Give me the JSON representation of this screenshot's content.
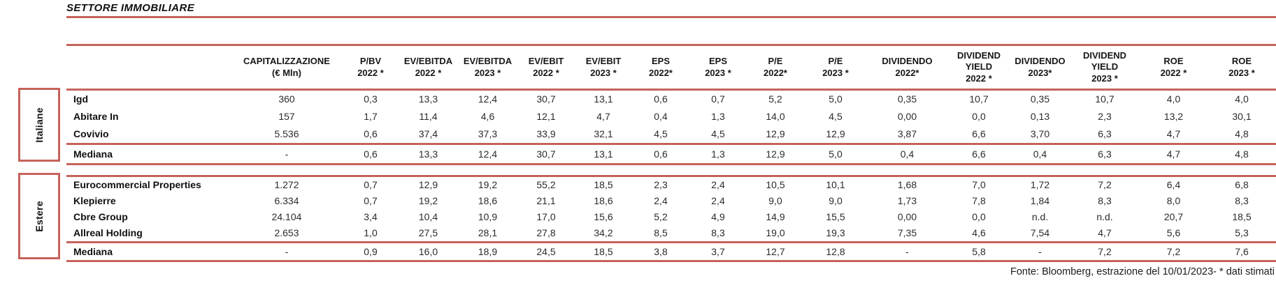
{
  "title": "SETTORE IMMOBILIARE",
  "footer": "Fonte: Bloomberg, estrazione del 10/01/2023- * dati stimati",
  "colors": {
    "accent": "#c5635a",
    "text": "#1b1b1b"
  },
  "table": {
    "columns": [
      "CAPITALIZZAZIONE\n(€ Mln)",
      "P/BV\n2022 *",
      "EV/EBITDA\n2022 *",
      "EV/EBITDA\n2023 *",
      "EV/EBIT\n2022 *",
      "EV/EBIT\n2023 *",
      "EPS\n2022*",
      "EPS\n2023 *",
      "P/E\n2022*",
      "P/E\n2023 *",
      "DIVIDENDO\n2022*",
      "DIVIDEND\nYIELD\n2022 *",
      "DIVIDENDO\n2023*",
      "DIVIDEND\nYIELD\n2023 *",
      "ROE\n2022 *",
      "ROE\n2023 *"
    ],
    "sections": [
      {
        "group_label": "Italiane",
        "rows": [
          {
            "name": "Igd",
            "values": [
              "360",
              "0,3",
              "13,3",
              "12,4",
              "30,7",
              "13,1",
              "0,6",
              "0,7",
              "5,2",
              "5,0",
              "0,35",
              "10,7",
              "0,35",
              "10,7",
              "4,0",
              "4,0"
            ]
          },
          {
            "name": "Abitare In",
            "values": [
              "157",
              "1,7",
              "11,4",
              "4,6",
              "12,1",
              "4,7",
              "0,4",
              "1,3",
              "14,0",
              "4,5",
              "0,00",
              "0,0",
              "0,13",
              "2,3",
              "13,2",
              "30,1"
            ]
          },
          {
            "name": "Covivio",
            "values": [
              "5.536",
              "0,6",
              "37,4",
              "37,3",
              "33,9",
              "32,1",
              "4,5",
              "4,5",
              "12,9",
              "12,9",
              "3,87",
              "6,6",
              "3,70",
              "6,3",
              "4,7",
              "4,8"
            ]
          }
        ],
        "median": {
          "name": "Mediana",
          "values": [
            "-",
            "0,6",
            "13,3",
            "12,4",
            "30,7",
            "13,1",
            "0,6",
            "1,3",
            "12,9",
            "5,0",
            "0,4",
            "6,6",
            "0,4",
            "6,3",
            "4,7",
            "4,8"
          ]
        }
      },
      {
        "group_label": "Estere",
        "rows": [
          {
            "name": "Eurocommercial Properties",
            "values": [
              "1.272",
              "0,7",
              "12,9",
              "19,2",
              "55,2",
              "18,5",
              "2,3",
              "2,4",
              "10,5",
              "10,1",
              "1,68",
              "7,0",
              "1,72",
              "7,2",
              "6,4",
              "6,8"
            ]
          },
          {
            "name": "Klepierre",
            "values": [
              "6.334",
              "0,7",
              "19,2",
              "18,6",
              "21,1",
              "18,6",
              "2,4",
              "2,4",
              "9,0",
              "9,0",
              "1,73",
              "7,8",
              "1,84",
              "8,3",
              "8,0",
              "8,3"
            ]
          },
          {
            "name": "Cbre Group",
            "values": [
              "24.104",
              "3,4",
              "10,4",
              "10,9",
              "17,0",
              "15,6",
              "5,2",
              "4,9",
              "14,9",
              "15,5",
              "0,00",
              "0,0",
              "n.d.",
              "n.d.",
              "20,7",
              "18,5"
            ]
          },
          {
            "name": "Allreal Holding",
            "values": [
              "2.653",
              "1,0",
              "27,5",
              "28,1",
              "27,8",
              "34,2",
              "8,5",
              "8,3",
              "19,0",
              "19,3",
              "7,35",
              "4,6",
              "7,54",
              "4,7",
              "5,6",
              "5,3"
            ]
          }
        ],
        "median": {
          "name": "Mediana",
          "values": [
            "-",
            "0,9",
            "16,0",
            "18,9",
            "24,5",
            "18,5",
            "3,8",
            "3,7",
            "12,7",
            "12,8",
            "-",
            "5,8",
            "-",
            "7,2",
            "7,2",
            "7,6"
          ]
        }
      }
    ]
  }
}
